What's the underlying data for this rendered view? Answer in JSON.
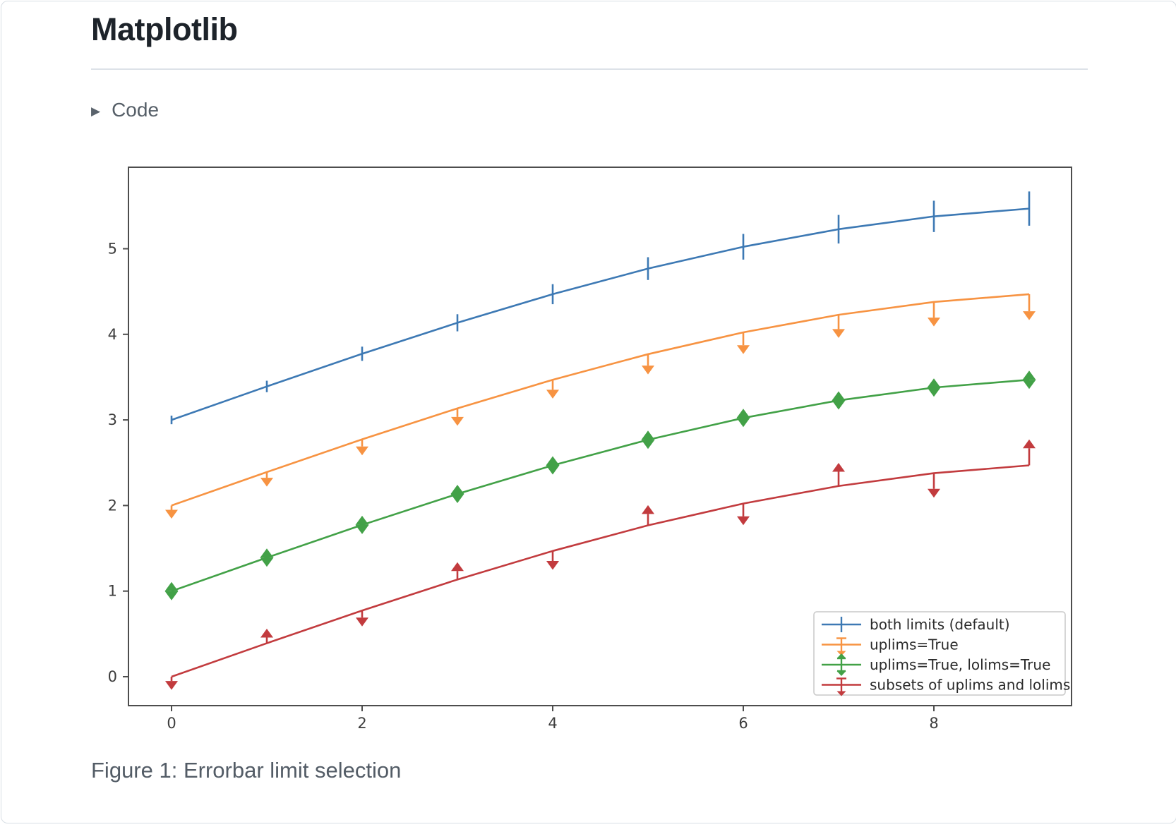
{
  "page": {
    "title": "Matplotlib",
    "disclosure_icon": "▶",
    "code_summary": "Code",
    "caption": "Figure 1: Errorbar limit selection"
  },
  "chart_data": {
    "type": "line",
    "x": [
      0,
      1,
      2,
      3,
      4,
      5,
      6,
      7,
      8,
      9
    ],
    "yerr": [
      0.05,
      0.067,
      0.083,
      0.1,
      0.117,
      0.133,
      0.15,
      0.167,
      0.183,
      0.2
    ],
    "series": [
      {
        "name": "both limits (default)",
        "color": "#3d79b4",
        "values": [
          3.0,
          3.391,
          3.773,
          4.135,
          4.469,
          4.768,
          5.023,
          5.228,
          5.378,
          5.469
        ],
        "uplims": [
          false,
          false,
          false,
          false,
          false,
          false,
          false,
          false,
          false,
          false
        ],
        "lolims": [
          false,
          false,
          false,
          false,
          false,
          false,
          false,
          false,
          false,
          false
        ]
      },
      {
        "name": "uplims=True",
        "color": "#f79342",
        "values": [
          2.0,
          2.391,
          2.773,
          3.135,
          3.469,
          3.768,
          4.023,
          4.228,
          4.378,
          4.469
        ],
        "uplims": [
          true,
          true,
          true,
          true,
          true,
          true,
          true,
          true,
          true,
          true
        ],
        "lolims": [
          false,
          false,
          false,
          false,
          false,
          false,
          false,
          false,
          false,
          false
        ]
      },
      {
        "name": "uplims=True, lolims=True",
        "color": "#42a147",
        "values": [
          1.0,
          1.391,
          1.773,
          2.135,
          2.469,
          2.768,
          3.023,
          3.228,
          3.378,
          3.469
        ],
        "uplims": [
          true,
          true,
          true,
          true,
          true,
          true,
          true,
          true,
          true,
          true
        ],
        "lolims": [
          true,
          true,
          true,
          true,
          true,
          true,
          true,
          true,
          true,
          true
        ]
      },
      {
        "name": "subsets of uplims and lolims",
        "color": "#c23b3e",
        "values": [
          0.0,
          0.391,
          0.773,
          1.135,
          1.469,
          1.768,
          2.023,
          2.228,
          2.378,
          2.469
        ],
        "uplims": [
          true,
          false,
          true,
          false,
          true,
          false,
          true,
          false,
          true,
          false
        ],
        "lolims": [
          false,
          true,
          false,
          true,
          false,
          true,
          false,
          true,
          false,
          true
        ]
      }
    ],
    "xticks": [
      0,
      2,
      4,
      6,
      8
    ],
    "yticks": [
      0,
      1,
      2,
      3,
      4,
      5
    ],
    "xlim": [
      -0.45,
      9.45
    ],
    "ylim": [
      -0.34,
      5.95
    ],
    "grid": false,
    "legend_position": "lower right"
  }
}
